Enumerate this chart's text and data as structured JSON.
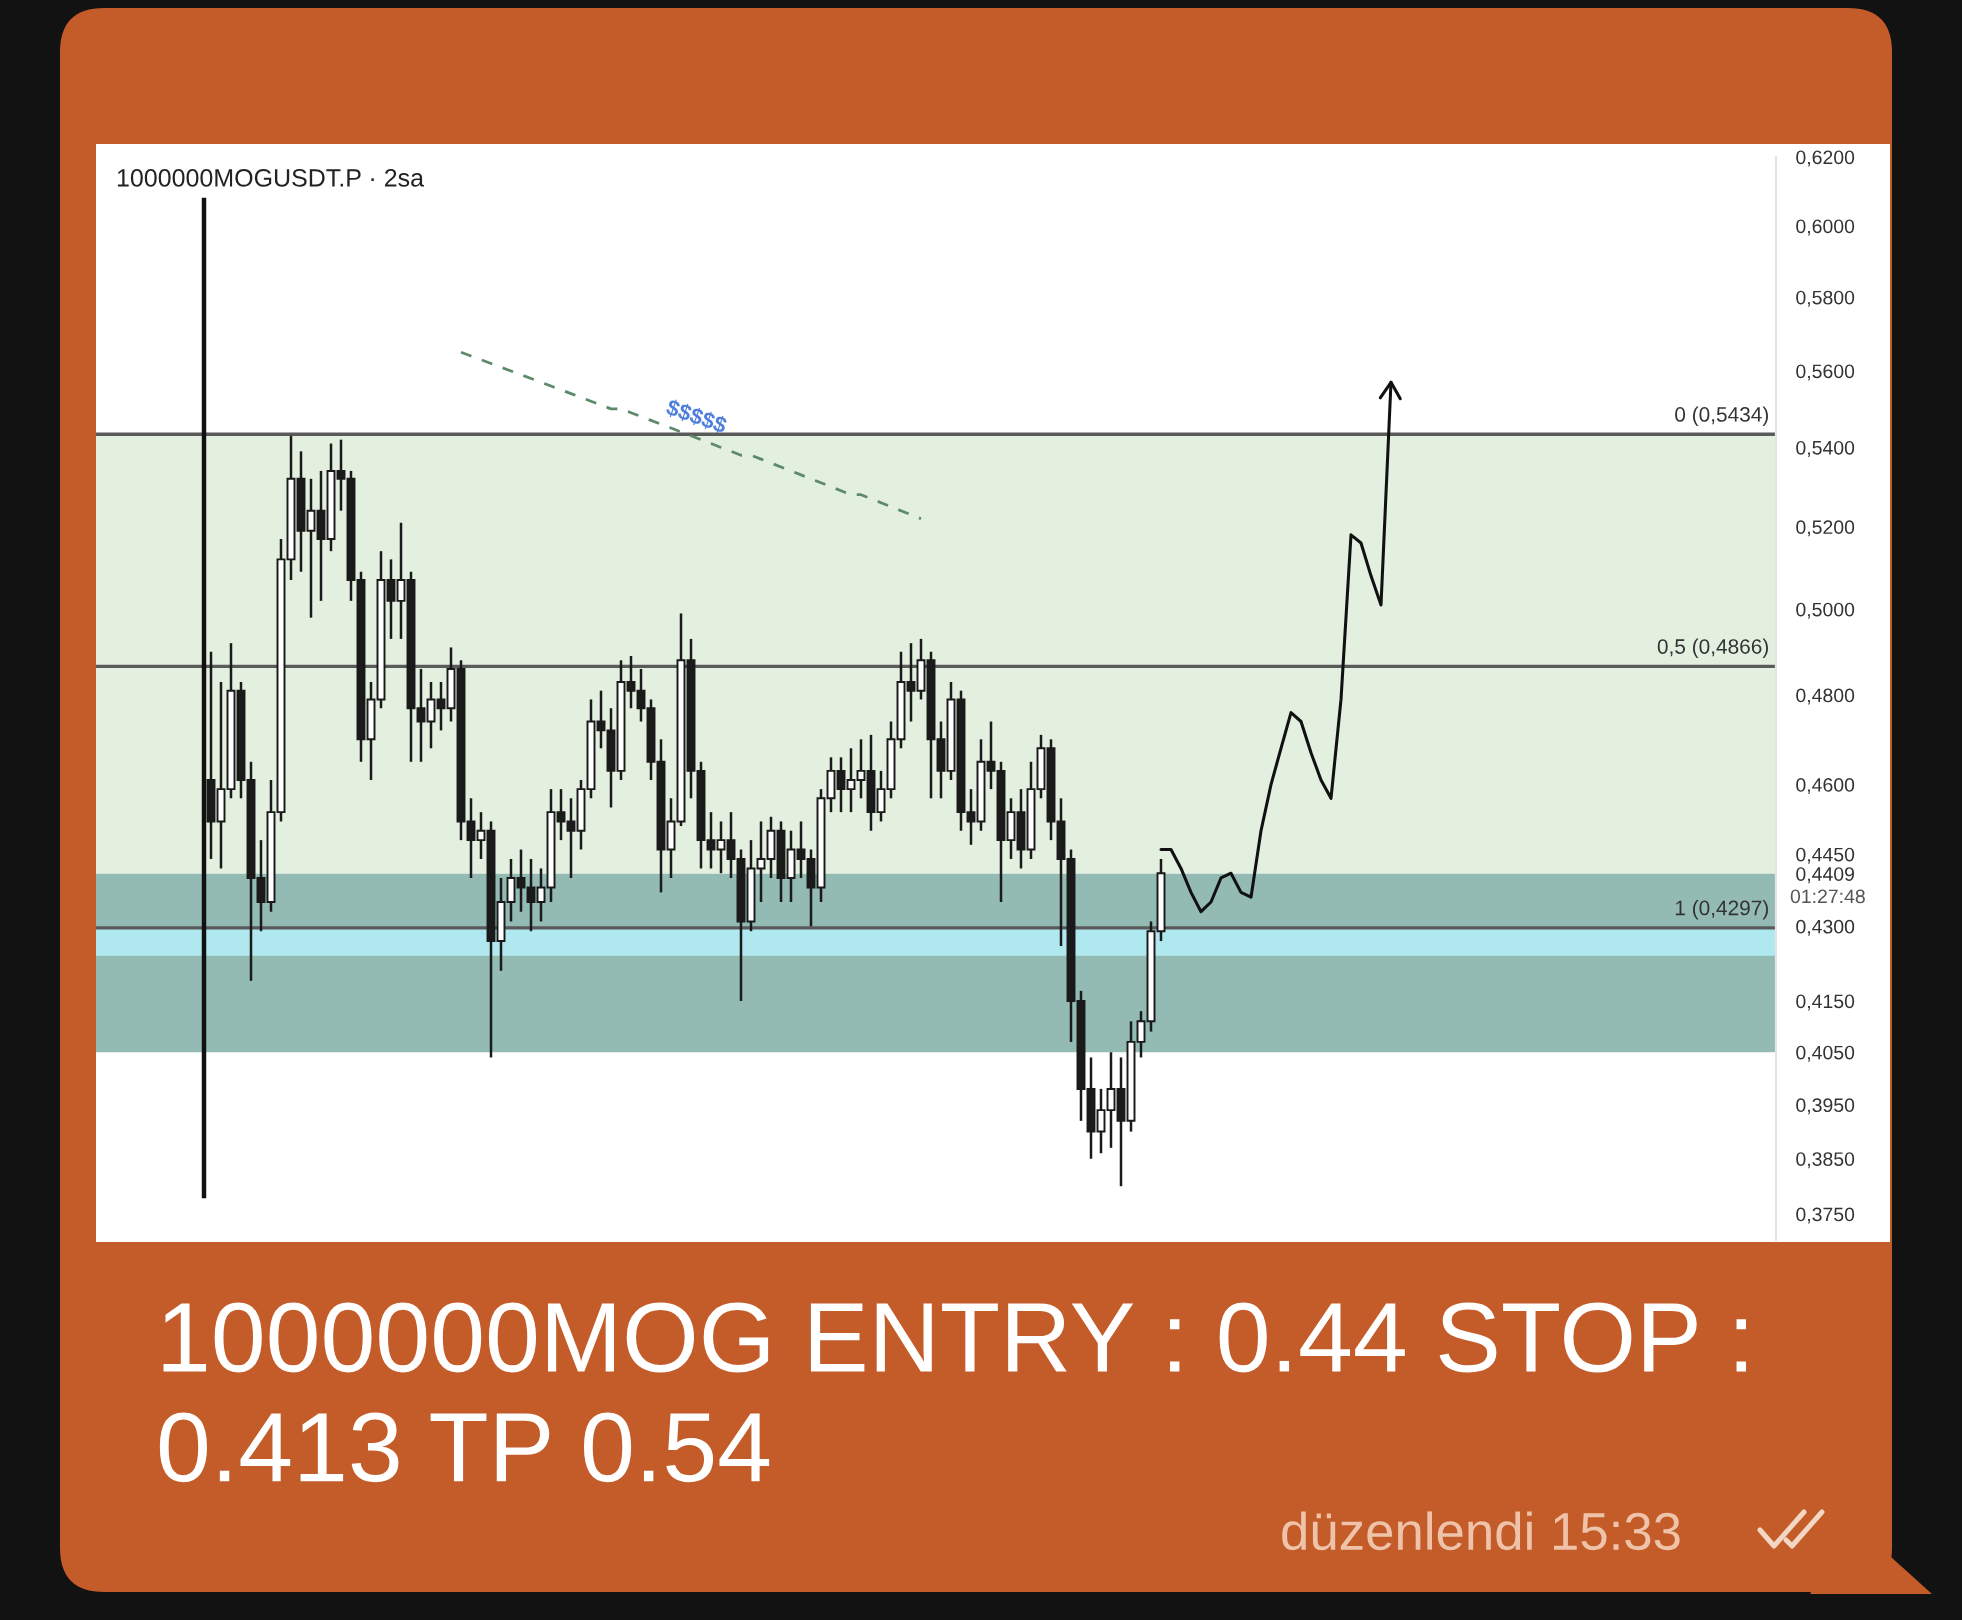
{
  "chart_data": {
    "type": "candlestick",
    "title": "1000000MOGUSDT.P · 2sa",
    "categories": [
      null,
      null,
      null,
      null,
      null,
      null,
      null,
      null,
      null,
      null,
      null,
      null,
      null,
      null,
      null,
      null,
      null,
      null,
      null,
      null,
      null,
      null,
      null,
      null,
      null,
      null,
      null,
      null,
      null,
      null,
      null,
      null,
      null,
      null,
      null,
      null,
      null,
      null,
      null,
      null,
      null,
      null,
      null,
      null,
      null,
      null,
      null,
      null,
      null,
      null,
      null,
      null,
      null,
      null,
      null,
      null,
      null,
      null,
      null,
      null,
      null,
      null,
      null,
      null,
      null,
      null,
      null,
      null,
      null,
      null,
      null,
      null,
      null,
      null,
      null,
      null,
      null,
      null,
      null,
      null,
      null,
      null,
      null,
      null,
      null,
      null,
      null,
      null,
      null,
      null,
      null,
      null,
      null,
      null,
      null,
      null,
      null,
      null,
      null,
      null,
      null,
      null,
      null,
      null,
      null,
      null,
      null,
      null,
      null,
      null,
      null,
      null,
      null,
      null,
      null,
      null,
      null,
      null,
      null,
      null,
      null,
      null,
      null,
      null,
      null,
      null,
      null,
      null,
      null,
      null,
      null,
      null,
      null,
      null,
      null,
      null,
      null,
      null,
      null,
      null,
      null,
      null,
      null,
      null,
      null,
      null,
      null,
      null,
      null,
      null,
      null,
      null,
      null,
      null,
      null,
      null,
      null,
      null,
      null,
      null,
      null,
      null,
      null,
      null,
      null,
      null,
      null,
      null
    ],
    "ohlc": [
      null,
      null,
      null,
      null,
      null,
      null,
      null,
      null,
      null,
      null,
      null,
      [
        0.461,
        0.49,
        0.444,
        0.452
      ],
      [
        0.452,
        0.483,
        0.442,
        0.459
      ],
      [
        0.459,
        0.492,
        0.457,
        0.481
      ],
      [
        0.481,
        0.483,
        0.457,
        0.461
      ],
      [
        0.461,
        0.465,
        0.419,
        0.44
      ],
      [
        0.44,
        0.448,
        0.429,
        0.435
      ],
      [
        0.435,
        0.461,
        0.433,
        0.454
      ],
      [
        0.454,
        0.517,
        0.452,
        0.512
      ],
      [
        0.512,
        0.543,
        0.507,
        0.532
      ],
      [
        0.532,
        0.539,
        0.509,
        0.519
      ],
      [
        0.519,
        0.532,
        0.498,
        0.524
      ],
      [
        0.524,
        0.534,
        0.502,
        0.517
      ],
      [
        0.517,
        0.541,
        0.514,
        0.534
      ],
      [
        0.534,
        0.542,
        0.524,
        0.532
      ],
      [
        0.532,
        0.534,
        0.502,
        0.507
      ],
      [
        0.507,
        0.509,
        0.465,
        0.47
      ],
      [
        0.47,
        0.483,
        0.461,
        0.479
      ],
      [
        0.479,
        0.514,
        0.477,
        0.507
      ],
      [
        0.507,
        0.512,
        0.493,
        0.502
      ],
      [
        0.502,
        0.521,
        0.493,
        0.507
      ],
      [
        0.507,
        0.509,
        0.465,
        0.477
      ],
      [
        0.477,
        0.486,
        0.465,
        0.474
      ],
      [
        0.474,
        0.483,
        0.468,
        0.479
      ],
      [
        0.479,
        0.483,
        0.472,
        0.477
      ],
      [
        0.477,
        0.491,
        0.474,
        0.486
      ],
      [
        0.486,
        0.488,
        0.448,
        0.452
      ],
      [
        0.452,
        0.457,
        0.44,
        0.448
      ],
      [
        0.448,
        0.454,
        0.444,
        0.45
      ],
      [
        0.45,
        0.452,
        0.404,
        0.427
      ],
      [
        0.427,
        0.44,
        0.421,
        0.435
      ],
      [
        0.435,
        0.444,
        0.431,
        0.44
      ],
      [
        0.44,
        0.446,
        0.433,
        0.438
      ],
      [
        0.438,
        0.444,
        0.429,
        0.435
      ],
      [
        0.435,
        0.442,
        0.431,
        0.438
      ],
      [
        0.438,
        0.459,
        0.435,
        0.454
      ],
      [
        0.454,
        0.459,
        0.448,
        0.452
      ],
      [
        0.452,
        0.457,
        0.44,
        0.45
      ],
      [
        0.45,
        0.461,
        0.446,
        0.459
      ],
      [
        0.459,
        0.479,
        0.457,
        0.474
      ],
      [
        0.474,
        0.481,
        0.468,
        0.472
      ],
      [
        0.472,
        0.477,
        0.455,
        0.463
      ],
      [
        0.463,
        0.488,
        0.461,
        0.483
      ],
      [
        0.483,
        0.489,
        0.477,
        0.481
      ],
      [
        0.481,
        0.486,
        0.474,
        0.477
      ],
      [
        0.477,
        0.479,
        0.461,
        0.465
      ],
      [
        0.465,
        0.47,
        0.437,
        0.446
      ],
      [
        0.446,
        0.457,
        0.44,
        0.452
      ],
      [
        0.452,
        0.499,
        0.451,
        0.488
      ],
      [
        0.488,
        0.493,
        0.457,
        0.463
      ],
      [
        0.463,
        0.465,
        0.442,
        0.448
      ],
      [
        0.448,
        0.454,
        0.442,
        0.446
      ],
      [
        0.446,
        0.452,
        0.441,
        0.448
      ],
      [
        0.448,
        0.454,
        0.44,
        0.444
      ],
      [
        0.444,
        0.446,
        0.415,
        0.431
      ],
      [
        0.431,
        0.448,
        0.429,
        0.442
      ],
      [
        0.442,
        0.452,
        0.435,
        0.444
      ],
      [
        0.444,
        0.453,
        0.44,
        0.45
      ],
      [
        0.45,
        0.452,
        0.435,
        0.44
      ],
      [
        0.44,
        0.45,
        0.435,
        0.446
      ],
      [
        0.446,
        0.452,
        0.44,
        0.444
      ],
      [
        0.444,
        0.446,
        0.43,
        0.438
      ],
      [
        0.438,
        0.459,
        0.435,
        0.457
      ],
      [
        0.457,
        0.466,
        0.454,
        0.463
      ],
      [
        0.463,
        0.466,
        0.454,
        0.459
      ],
      [
        0.459,
        0.468,
        0.454,
        0.461
      ],
      [
        0.461,
        0.47,
        0.457,
        0.463
      ],
      [
        0.463,
        0.471,
        0.45,
        0.454
      ],
      [
        0.454,
        0.463,
        0.452,
        0.459
      ],
      [
        0.459,
        0.474,
        0.457,
        0.47
      ],
      [
        0.47,
        0.49,
        0.468,
        0.483
      ],
      [
        0.483,
        0.492,
        0.474,
        0.481
      ],
      [
        0.481,
        0.493,
        0.479,
        0.488
      ],
      [
        0.488,
        0.49,
        0.457,
        0.47
      ],
      [
        0.47,
        0.474,
        0.457,
        0.463
      ],
      [
        0.463,
        0.483,
        0.461,
        0.479
      ],
      [
        0.479,
        0.481,
        0.45,
        0.454
      ],
      [
        0.454,
        0.459,
        0.447,
        0.452
      ],
      [
        0.452,
        0.47,
        0.45,
        0.465
      ],
      [
        0.465,
        0.474,
        0.459,
        0.463
      ],
      [
        0.463,
        0.465,
        0.435,
        0.448
      ],
      [
        0.448,
        0.457,
        0.444,
        0.454
      ],
      [
        0.454,
        0.459,
        0.442,
        0.446
      ],
      [
        0.446,
        0.465,
        0.444,
        0.459
      ],
      [
        0.459,
        0.471,
        0.457,
        0.468
      ],
      [
        0.468,
        0.47,
        0.448,
        0.452
      ],
      [
        0.452,
        0.457,
        0.426,
        0.444
      ],
      [
        0.444,
        0.446,
        0.407,
        0.415
      ],
      [
        0.415,
        0.417,
        0.392,
        0.398
      ],
      [
        0.398,
        0.404,
        0.385,
        0.39
      ],
      [
        0.39,
        0.398,
        0.386,
        0.394
      ],
      [
        0.394,
        0.405,
        0.387,
        0.398
      ],
      [
        0.398,
        0.404,
        0.38,
        0.392
      ],
      [
        0.392,
        0.411,
        0.39,
        0.407
      ],
      [
        0.407,
        0.413,
        0.404,
        0.411
      ],
      [
        0.411,
        0.431,
        0.409,
        0.429
      ],
      [
        0.429,
        0.444,
        0.427,
        0.441
      ],
      null,
      null,
      null,
      null,
      null,
      null,
      null,
      null,
      null,
      null,
      null,
      null,
      null,
      null,
      null,
      null,
      null,
      null,
      null,
      null,
      null,
      null,
      null,
      null,
      null,
      null,
      null,
      null,
      null,
      null,
      null,
      null,
      null,
      null,
      null,
      null,
      null,
      null,
      null,
      null,
      null,
      null,
      null,
      null,
      null,
      null,
      null,
      null,
      null,
      null,
      null,
      null,
      null,
      null,
      null,
      null,
      null,
      null,
      null,
      null,
      null
    ],
    "series": [
      {
        "type": "line",
        "color": "#111111",
        "line_style": "solid",
        "values": [
          null,
          null,
          null,
          null,
          null,
          null,
          null,
          null,
          null,
          null,
          null,
          null,
          null,
          null,
          null,
          null,
          null,
          null,
          null,
          null,
          null,
          null,
          null,
          null,
          null,
          null,
          null,
          null,
          null,
          null,
          null,
          null,
          null,
          null,
          null,
          null,
          null,
          null,
          null,
          null,
          null,
          null,
          null,
          null,
          null,
          null,
          null,
          null,
          null,
          null,
          null,
          null,
          null,
          null,
          null,
          null,
          null,
          null,
          null,
          null,
          null,
          null,
          null,
          null,
          null,
          null,
          null,
          null,
          null,
          null,
          null,
          null,
          null,
          null,
          null,
          null,
          null,
          null,
          null,
          null,
          null,
          null,
          null,
          null,
          null,
          null,
          null,
          null,
          null,
          null,
          null,
          null,
          null,
          null,
          null,
          null,
          null,
          null,
          null,
          null,
          null,
          null,
          null,
          null,
          null,
          null,
          0.446,
          0.446,
          0.442,
          0.437,
          0.433,
          0.435,
          0.44,
          0.441,
          0.437,
          0.436,
          0.45,
          0.46,
          0.468,
          0.476,
          0.474,
          0.467,
          0.461,
          0.457,
          0.479,
          0.518,
          0.516,
          0.508,
          0.501,
          0.557,
          null,
          null,
          null,
          null,
          null,
          null,
          null,
          null,
          null,
          null,
          null,
          null,
          null,
          null,
          null,
          null,
          null,
          null,
          null,
          null,
          null,
          null,
          null,
          null,
          null,
          null,
          null,
          null,
          null,
          null,
          null,
          null,
          null,
          null,
          null,
          null,
          null,
          null
        ]
      },
      {
        "type": "line",
        "color": "#5d8a6a",
        "line_style": "dashed",
        "values": [
          null,
          null,
          null,
          null,
          null,
          null,
          null,
          null,
          null,
          null,
          null,
          null,
          null,
          null,
          null,
          null,
          null,
          null,
          null,
          null,
          null,
          null,
          null,
          null,
          null,
          null,
          null,
          null,
          null,
          null,
          null,
          null,
          null,
          null,
          null,
          null,
          0.565,
          0.564,
          0.563,
          0.562,
          0.561,
          0.56,
          0.559,
          0.558,
          0.557,
          0.556,
          0.555,
          0.554,
          0.553,
          0.552,
          0.551,
          0.55,
          0.55,
          0.549,
          0.548,
          0.547,
          0.546,
          0.545,
          0.544,
          0.543,
          0.542,
          0.541,
          0.54,
          0.539,
          0.538,
          0.538,
          0.537,
          0.536,
          0.535,
          0.534,
          0.533,
          0.532,
          0.531,
          0.53,
          0.529,
          0.528,
          0.528,
          0.527,
          0.526,
          0.525,
          0.524,
          0.523,
          0.522,
          null,
          null,
          null,
          null,
          null,
          null,
          null,
          null,
          null,
          null,
          null,
          null,
          null,
          null,
          null,
          null,
          null,
          null,
          null,
          null,
          null,
          null,
          null,
          null,
          null,
          null,
          null,
          null,
          null,
          null,
          null,
          null,
          null,
          null,
          null,
          null,
          null,
          null,
          null,
          null,
          null,
          null,
          null,
          null,
          null,
          null,
          null,
          null,
          null,
          null,
          null,
          null,
          null,
          null,
          null,
          null,
          null,
          null,
          null,
          null,
          null,
          null,
          null,
          null,
          null,
          null,
          null,
          null,
          null,
          null,
          null,
          null,
          null,
          null,
          null,
          null,
          null,
          null,
          null,
          null,
          null,
          null,
          null,
          null,
          null
        ]
      }
    ],
    "log": true,
    "ylim": [
      0.3704,
      0.62
    ],
    "yticks": [
      {
        "value": 0.375,
        "label": "0,3750"
      },
      {
        "value": 0.385,
        "label": "0,3850"
      },
      {
        "value": 0.395,
        "label": "0,3950"
      },
      {
        "value": 0.405,
        "label": "0,4050"
      },
      {
        "value": 0.415,
        "label": "0,4150"
      },
      {
        "value": 0.43,
        "label": "0,4300"
      },
      {
        "value": 0.4409,
        "label": "0,4409"
      },
      {
        "value": 0.445,
        "label": "0,4450"
      },
      {
        "value": 0.46,
        "label": "0,4600"
      },
      {
        "value": 0.48,
        "label": "0,4800"
      },
      {
        "value": 0.5,
        "label": "0,5000"
      },
      {
        "value": 0.52,
        "label": "0,5200"
      },
      {
        "value": 0.54,
        "label": "0,5400"
      },
      {
        "value": 0.56,
        "label": "0,5600"
      },
      {
        "value": 0.58,
        "label": "0,5800"
      },
      {
        "value": 0.6,
        "label": "0,6000"
      },
      {
        "value": 0.62,
        "label": "0,6200"
      }
    ],
    "tick_labels": "y",
    "grid": false,
    "ref_lines": [
      {
        "axis": "y",
        "value": 0.5434,
        "label": "0 (0,5434)",
        "color": "#5a5a5a"
      },
      {
        "axis": "y",
        "value": 0.4866,
        "label": "0,5 (0,4866)",
        "color": "#5a5a5a"
      },
      {
        "axis": "y",
        "value": 0.4297,
        "label": "1 (0,4297)",
        "color": "#5a5a5a"
      }
    ],
    "bands": [
      {
        "axis": "y",
        "from": 0.4409,
        "to": 0.5434,
        "color": "#e3f0df"
      },
      {
        "axis": "y",
        "from": 0.405,
        "to": 0.4409,
        "color": "#93bab3"
      },
      {
        "axis": "y",
        "from": 0.424,
        "to": 0.4297,
        "color": "#b0e8ef"
      }
    ],
    "annotations": [
      "$$$$$",
      "01:27:48",
      "1000000MOG ENTRY : 0.44 STOP : 0.413 TP 0.54",
      "düzenlendi 15:33"
    ]
  }
}
